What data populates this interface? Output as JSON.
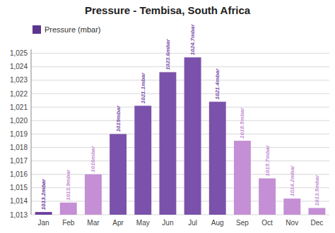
{
  "chart_data": {
    "type": "bar",
    "title": "Pressure - Tembisa, South Africa",
    "categories": [
      "Jan",
      "Feb",
      "Mar",
      "Apr",
      "May",
      "Jun",
      "Jul",
      "Aug",
      "Sep",
      "Oct",
      "Nov",
      "Dec"
    ],
    "series": [
      {
        "name": "Pressure (mbar)",
        "color": "#5b3590",
        "colors": [
          "#6a3d9e",
          "#c48fd4",
          "#c48fd4",
          "#7b52ab",
          "#7b52ab",
          "#7b52ab",
          "#7b52ab",
          "#7b52ab",
          "#c48fd4",
          "#c48fd4",
          "#c48fd4",
          "#c48fd4"
        ],
        "values": [
          1013.2,
          1013.9,
          1016.0,
          1019.0,
          1021.1,
          1023.6,
          1024.7,
          1021.4,
          1018.5,
          1015.7,
          1014.2,
          1013.5
        ],
        "value_labels": [
          "1013.2mbar",
          "1013.9mbar",
          "1016mbar",
          "1019mbar",
          "1021.1mbar",
          "1023.6mbar",
          "1024.7mbar",
          "1021.4mbar",
          "1018.5mbar",
          "1015.7mbar",
          "1014.2mbar",
          "1013.5mbar"
        ]
      }
    ],
    "ylim": [
      1013,
      1025.3
    ],
    "yticks": [
      {
        "value": 1013,
        "label": "1,013"
      },
      {
        "value": 1014,
        "label": "1,014"
      },
      {
        "value": 1015,
        "label": "1,015"
      },
      {
        "value": 1016,
        "label": "1,016"
      },
      {
        "value": 1017,
        "label": "1,017"
      },
      {
        "value": 1018,
        "label": "1,018"
      },
      {
        "value": 1019,
        "label": "1,019"
      },
      {
        "value": 1020,
        "label": "1,020"
      },
      {
        "value": 1021,
        "label": "1,021"
      },
      {
        "value": 1022,
        "label": "1,022"
      },
      {
        "value": 1023,
        "label": "1,023"
      },
      {
        "value": 1024,
        "label": "1,024"
      },
      {
        "value": 1025,
        "label": "1,025"
      }
    ],
    "grid": true,
    "legend": "top-left",
    "data_labels": true
  }
}
